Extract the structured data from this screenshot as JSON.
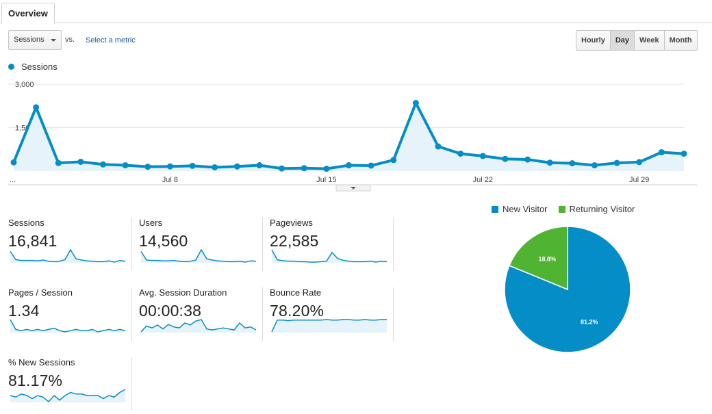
{
  "tabs": [
    {
      "label": "Overview"
    }
  ],
  "controls": {
    "metric_select": "Sessions",
    "vs": "vs.",
    "select_metric": "Select a metric",
    "ranges": [
      {
        "label": "Hourly",
        "active": false
      },
      {
        "label": "Day",
        "active": true
      },
      {
        "label": "Week",
        "active": false
      },
      {
        "label": "Month",
        "active": false
      }
    ]
  },
  "legend": {
    "label": "Sessions"
  },
  "colors": {
    "line": "#058dc7",
    "fill": "#e6f3fa",
    "returning": "#50b432"
  },
  "chart_data": [
    {
      "type": "area",
      "title": "",
      "series": [
        {
          "name": "Sessions",
          "values": [
            300,
            2200,
            280,
            320,
            230,
            200,
            150,
            160,
            180,
            130,
            160,
            200,
            90,
            100,
            80,
            200,
            190,
            380,
            2350,
            850,
            600,
            520,
            420,
            400,
            290,
            270,
            200,
            280,
            310,
            650,
            600
          ]
        }
      ],
      "x_labels": [
        "...",
        "Jul 8",
        "Jul 15",
        "Jul 22",
        "Jul 29"
      ],
      "ylim": [
        0,
        3000
      ],
      "yticks": [
        "3,000",
        "1,500"
      ],
      "grid": true
    },
    {
      "type": "pie",
      "legend": [
        "New Visitor",
        "Returning Visitor"
      ],
      "values": [
        81.2,
        18.8
      ],
      "labels": [
        "81.2%",
        "18.8%"
      ]
    }
  ],
  "tiles": [
    {
      "label": "Sessions",
      "value": "16,841",
      "spark": [
        380,
        180,
        160,
        160,
        160,
        150,
        170,
        140,
        130,
        140,
        180,
        420,
        200,
        170,
        150,
        140,
        130,
        130,
        150,
        120,
        160,
        140
      ]
    },
    {
      "label": "Users",
      "value": "14,560",
      "spark": [
        380,
        170,
        160,
        160,
        150,
        150,
        160,
        140,
        130,
        140,
        170,
        420,
        200,
        170,
        150,
        140,
        130,
        130,
        140,
        120,
        150,
        140
      ]
    },
    {
      "label": "Pageviews",
      "value": "22,585",
      "spark": [
        420,
        200,
        180,
        170,
        170,
        160,
        160,
        150,
        150,
        160,
        170,
        360,
        230,
        190,
        170,
        160,
        160,
        160,
        170,
        150,
        170,
        160
      ]
    },
    {
      "label": "Pages / Session",
      "value": "1.34",
      "spark": [
        1.9,
        1.5,
        1.45,
        1.5,
        1.45,
        1.5,
        1.45,
        1.5,
        1.55,
        1.45,
        1.4,
        1.45,
        1.5,
        1.45,
        1.45,
        1.5,
        1.4,
        1.45,
        1.5,
        1.45,
        1.5,
        1.45
      ]
    },
    {
      "label": "Avg. Session Duration",
      "value": "00:00:38",
      "spark": [
        30,
        42,
        38,
        44,
        36,
        45,
        40,
        38,
        48,
        44,
        52,
        55,
        36,
        34,
        36,
        38,
        36,
        34,
        48,
        38,
        40,
        34
      ]
    },
    {
      "label": "Bounce Rate",
      "value": "78.20%",
      "spark": [
        60,
        82,
        82,
        81,
        82,
        82,
        82,
        82,
        82,
        82,
        83,
        82,
        82,
        83,
        83,
        82,
        82,
        83,
        82,
        82,
        83,
        83
      ]
    },
    {
      "label": "% New Sessions",
      "value": "81.17%",
      "spark": [
        80,
        79,
        81,
        80,
        78,
        80,
        79,
        76,
        80,
        77,
        80,
        82,
        81,
        81,
        80,
        80,
        80,
        78,
        80,
        79,
        82,
        84
      ]
    }
  ]
}
